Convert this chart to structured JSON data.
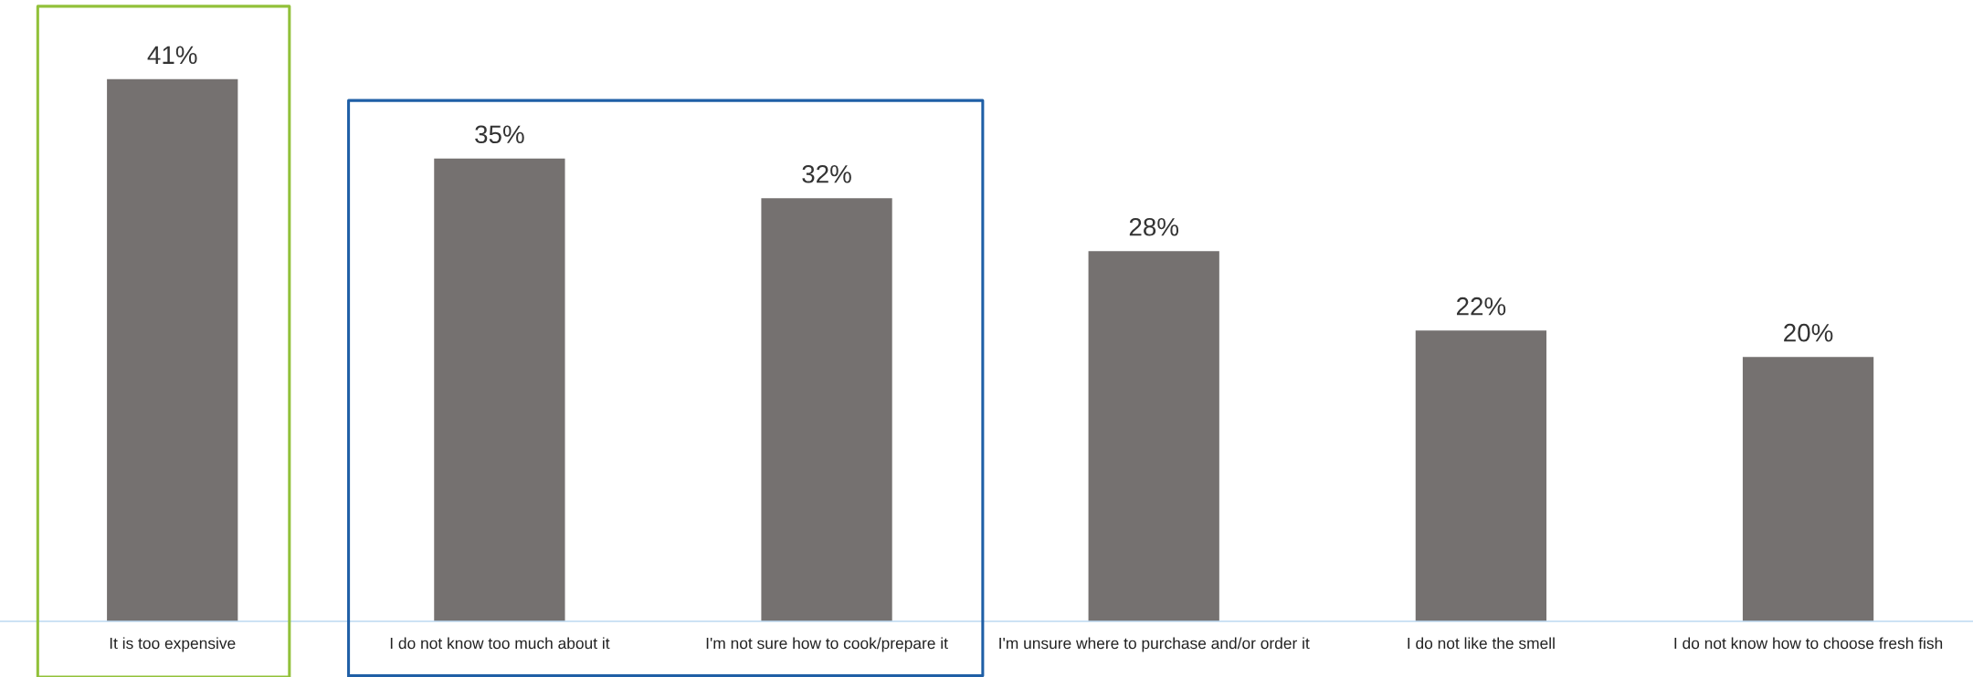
{
  "chart_data": {
    "type": "bar",
    "categories": [
      "It is too expensive",
      "I do not know too much about it",
      "I'm not sure how to cook/prepare it",
      "I'm unsure where to purchase and/or order it",
      "I do not like the smell",
      "I do not know how to choose fresh fish"
    ],
    "values": [
      41,
      35,
      32,
      28,
      22,
      20
    ],
    "value_labels": [
      "41%",
      "35%",
      "32%",
      "28%",
      "22%",
      "20%"
    ],
    "color": "#757170",
    "tick_labels": "x",
    "grid": false,
    "legend": false
  }
}
